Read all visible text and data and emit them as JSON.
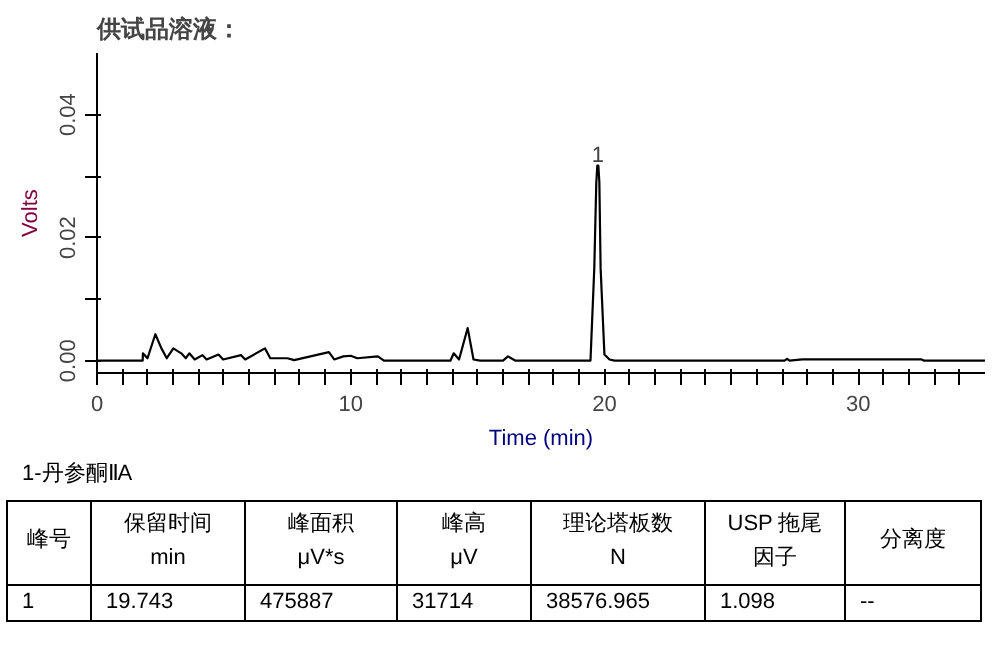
{
  "chart_data": {
    "type": "line",
    "title": "供试品溶液：",
    "xlabel": "Time (min)",
    "ylabel": "Volts",
    "xlim": [
      0,
      35
    ],
    "ylim": [
      -0.002,
      0.05
    ],
    "xticks": [
      0,
      {
        "value": 1,
        "label": null
      },
      {
        "value": 2,
        "label": null
      },
      {
        "value": 3,
        "label": null
      },
      {
        "value": 4,
        "label": null
      },
      {
        "value": 5,
        "label": null
      },
      {
        "value": 6,
        "label": null
      },
      {
        "value": 7,
        "label": null
      },
      {
        "value": 8,
        "label": null
      },
      {
        "value": 9,
        "label": null
      },
      10,
      {
        "value": 11,
        "label": null
      },
      {
        "value": 12,
        "label": null
      },
      {
        "value": 13,
        "label": null
      },
      {
        "value": 14,
        "label": null
      },
      {
        "value": 15,
        "label": null
      },
      {
        "value": 16,
        "label": null
      },
      {
        "value": 17,
        "label": null
      },
      {
        "value": 18,
        "label": null
      },
      {
        "value": 19,
        "label": null
      },
      20,
      {
        "value": 21,
        "label": null
      },
      {
        "value": 22,
        "label": null
      },
      {
        "value": 23,
        "label": null
      },
      {
        "value": 24,
        "label": null
      },
      {
        "value": 25,
        "label": null
      },
      {
        "value": 26,
        "label": null
      },
      {
        "value": 27,
        "label": null
      },
      {
        "value": 28,
        "label": null
      },
      {
        "value": 29,
        "label": null
      },
      30,
      {
        "value": 31,
        "label": null
      },
      {
        "value": 32,
        "label": null
      },
      {
        "value": 33,
        "label": null
      },
      {
        "value": 34,
        "label": null
      }
    ],
    "yticks": [
      {
        "value": 0,
        "label": "0.00"
      },
      {
        "value": 0.01,
        "label": null
      },
      {
        "value": 0.02,
        "label": "0.02"
      },
      {
        "value": 0.03,
        "label": null
      },
      {
        "value": 0.04,
        "label": "0.04"
      }
    ],
    "grid": false,
    "series": [
      {
        "color": "#000000",
        "x": [
          0,
          1.8,
          1.81,
          1.99,
          2.3,
          2.54,
          2.75,
          3.01,
          3.32,
          3.5,
          3.64,
          3.85,
          4.16,
          4.32,
          4.79,
          4.97,
          5.68,
          5.84,
          6.62,
          6.83,
          7.51,
          7.77,
          9.14,
          9.35,
          9.71,
          10.0,
          10.26,
          11.07,
          11.31,
          13.93,
          14.06,
          14.27,
          14.61,
          14.84,
          15.1,
          16.0,
          16.2,
          16.5,
          19.45,
          19.6,
          19.68,
          19.72,
          19.74,
          19.76,
          19.8,
          19.85,
          20.0,
          20.2,
          20.4,
          27.1,
          27.2,
          27.3,
          27.8,
          32.5,
          32.6,
          35
        ],
        "values": [
          0,
          0,
          0.0012,
          0.0004,
          0.0043,
          0.002,
          0.0004,
          0.002,
          0.0012,
          0.0004,
          0.0012,
          0.0002,
          0.0009,
          0.0002,
          0.001,
          0.0002,
          0.0009,
          0.0002,
          0.002,
          0.0004,
          0.0004,
          0.0001,
          0.0014,
          0.0002,
          0.0007,
          0.0008,
          0.0004,
          0.0007,
          0,
          0,
          0.0012,
          0.0002,
          0.0053,
          0.0002,
          0,
          0,
          0.0007,
          0,
          0,
          0.015,
          0.029,
          0.0317,
          0.0317,
          0.0317,
          0.029,
          0.015,
          0.001,
          0.0002,
          0,
          0,
          0.0003,
          0,
          0.0002,
          0.0002,
          0,
          0
        ]
      }
    ],
    "annotations": [
      {
        "text": "1",
        "x": 19.74,
        "y": 0.0317
      },
      "1-丹参酮ⅡA",
      "峰号",
      "保留时间\nmin",
      "峰面积\nμV*s",
      "峰高\nμV",
      "理论塔板数\nN",
      "USP 拖尾因子",
      "分离度",
      "1",
      "19.743",
      "475887",
      "31714",
      "38576.965",
      "1.098",
      "--"
    ]
  }
}
